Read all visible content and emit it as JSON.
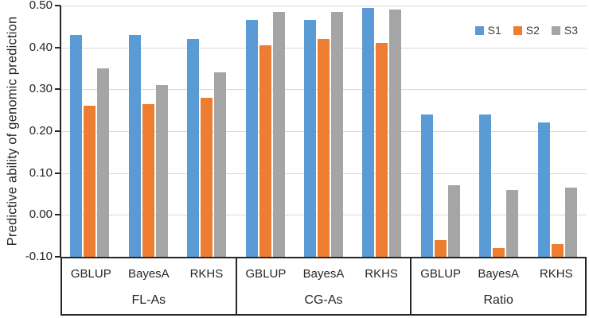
{
  "chart_data": {
    "type": "bar",
    "title": "",
    "xlabel": "",
    "ylabel": "Predictive ability of genomic prediction",
    "ylim": [
      -0.1,
      0.5
    ],
    "ytick_labels": [
      "0.50",
      "0.40",
      "0.30",
      "0.20",
      "0.10",
      "0.00",
      "-0.10"
    ],
    "grid": true,
    "legend_position": "top-right",
    "bar_baseline": -0.1,
    "group_labels": [
      "FL-As",
      "CG-As",
      "Ratio"
    ],
    "categories": [
      "GBLUP",
      "BayesA",
      "RKHS",
      "GBLUP",
      "BayesA",
      "RKHS",
      "GBLUP",
      "BayesA",
      "RKHS"
    ],
    "series": [
      {
        "name": "S1",
        "color": "#5B9BD5",
        "values": [
          0.43,
          0.43,
          0.42,
          0.465,
          0.465,
          0.495,
          0.24,
          0.24,
          0.22
        ]
      },
      {
        "name": "S2",
        "color": "#ED7D31",
        "values": [
          0.26,
          0.265,
          0.28,
          0.405,
          0.42,
          0.41,
          -0.06,
          -0.08,
          -0.07
        ]
      },
      {
        "name": "S3",
        "color": "#A5A5A5",
        "values": [
          0.35,
          0.31,
          0.34,
          0.485,
          0.485,
          0.49,
          0.07,
          0.06,
          0.065
        ]
      }
    ]
  },
  "colors": {
    "gridline": "#D9D9D9",
    "axis_line": "#262626",
    "text": "#262626",
    "background": "#FFFFFF"
  }
}
